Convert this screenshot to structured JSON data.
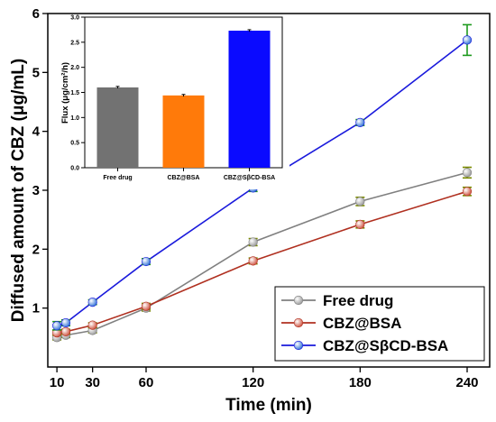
{
  "chart_data": [
    {
      "type": "line",
      "xlabel": "Time (min)",
      "ylabel": "Diffused amount of CBZ (μg/mL)",
      "xlim": [
        0,
        250
      ],
      "ylim": [
        0,
        6
      ],
      "x_ticks": [
        10,
        30,
        60,
        120,
        180,
        240
      ],
      "y_ticks": [
        1,
        2,
        3,
        4,
        5,
        6
      ],
      "grid": false,
      "legend": "bottom-right",
      "series": [
        {
          "name": "Free drug",
          "color": "#808080",
          "marker_color": "#9e9e9e",
          "errbar_color": "#7a8a00",
          "x": [
            10,
            15,
            30,
            60,
            120,
            180,
            240
          ],
          "y": [
            0.5,
            0.54,
            0.62,
            1.0,
            2.12,
            2.81,
            3.3
          ],
          "err": [
            0.04,
            0.04,
            0.04,
            0.05,
            0.06,
            0.07,
            0.09
          ]
        },
        {
          "name": "CBZ@BSA",
          "color": "#b03020",
          "marker_color": "#d05a48",
          "errbar_color": "#7a8a00",
          "x": [
            10,
            15,
            30,
            60,
            120,
            180,
            240
          ],
          "y": [
            0.58,
            0.6,
            0.71,
            1.03,
            1.8,
            2.42,
            2.98
          ],
          "err": [
            0.04,
            0.04,
            0.04,
            0.05,
            0.05,
            0.06,
            0.07
          ]
        },
        {
          "name": "CBZ@SβCD-BSA",
          "color": "#1a1adc",
          "marker_color": "#3a78d8",
          "errbar_color": "#1e9a1e",
          "x": [
            10,
            15,
            30,
            60,
            120,
            180,
            240
          ],
          "y": [
            0.7,
            0.75,
            1.1,
            1.79,
            3.04,
            4.15,
            5.55
          ],
          "err": [
            0.07,
            0.05,
            0.04,
            0.05,
            0.06,
            0.05,
            0.26
          ]
        }
      ]
    },
    {
      "type": "bar",
      "ylabel": "Flux (μg/cm²/h)",
      "ylim": [
        0,
        3.0
      ],
      "y_ticks": [
        0.0,
        0.5,
        1.0,
        1.5,
        2.0,
        2.5,
        3.0
      ],
      "y_tick_labels": [
        "0.0",
        "0.5",
        "1.0",
        "1.5",
        "2.0",
        "2.5",
        "3.0"
      ],
      "categories": [
        "Free drug",
        "CBZ@BSA",
        "CBZ@SβCD-BSA"
      ],
      "values": [
        1.6,
        1.44,
        2.73
      ],
      "err": [
        0.02,
        0.02,
        0.02
      ],
      "colors": [
        "#727272",
        "#ff7a0a",
        "#0a0aff"
      ]
    }
  ]
}
